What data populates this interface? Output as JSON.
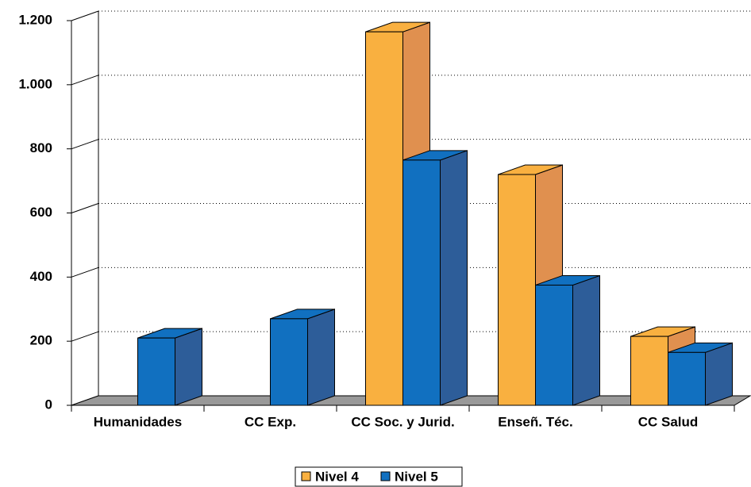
{
  "chart_data": {
    "type": "bar3d",
    "categories": [
      "Humanidades",
      "CC Exp.",
      "CC Soc. y Jurid.",
      "Enseñ. Téc.",
      "CC Salud"
    ],
    "series": [
      {
        "name": "Nivel 4",
        "color": "#f9b040",
        "side_color": "#e0904f",
        "values": [
          null,
          null,
          1165,
          720,
          215
        ]
      },
      {
        "name": "Nivel 5",
        "color": "#1170c0",
        "side_color": "#2d5d99",
        "values": [
          210,
          270,
          765,
          375,
          165
        ]
      }
    ],
    "ylim": [
      0,
      1200
    ],
    "yticks": [
      0,
      200,
      400,
      600,
      800,
      {
        "value": 1000,
        "label": "1.000"
      },
      {
        "value": 1200,
        "label": "1.200"
      }
    ],
    "grid": true,
    "legend": "bottom"
  }
}
